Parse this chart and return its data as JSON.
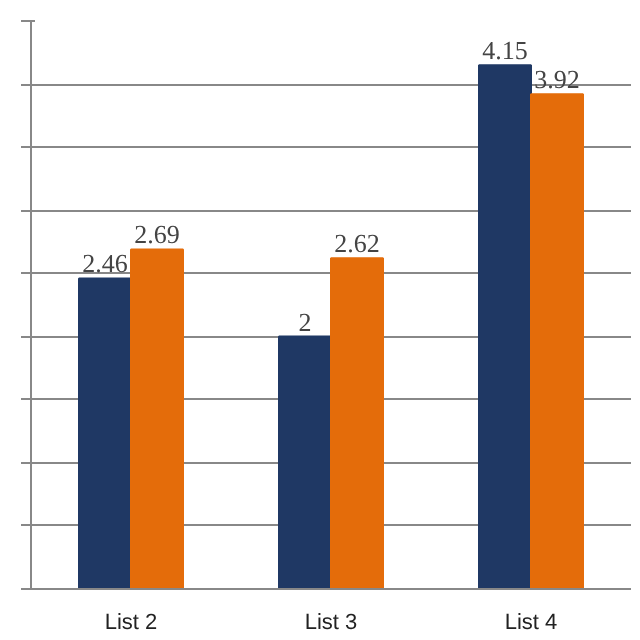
{
  "chart_data": {
    "type": "bar",
    "categories": [
      "List 2",
      "List 3",
      "List 4"
    ],
    "series": [
      {
        "color": "#1f3864",
        "values": [
          2.46,
          2,
          4.15
        ]
      },
      {
        "color": "#e46c0a",
        "values": [
          2.69,
          2.62,
          3.92
        ]
      }
    ],
    "data_labels": true,
    "grid": "y",
    "tick_labels": "x",
    "ylim": [
      0,
      4.5
    ],
    "yticks": [
      {
        "value": 0,
        "label": null
      },
      {
        "value": 0.5,
        "label": null
      },
      {
        "value": 1,
        "label": null
      },
      {
        "value": 1.5,
        "label": null
      },
      {
        "value": 2,
        "label": null
      },
      {
        "value": 2.5,
        "label": null
      },
      {
        "value": 3,
        "label": null
      },
      {
        "value": 3.5,
        "label": null
      },
      {
        "value": 4,
        "label": null
      },
      {
        "value": 4.5,
        "label": null
      }
    ]
  }
}
